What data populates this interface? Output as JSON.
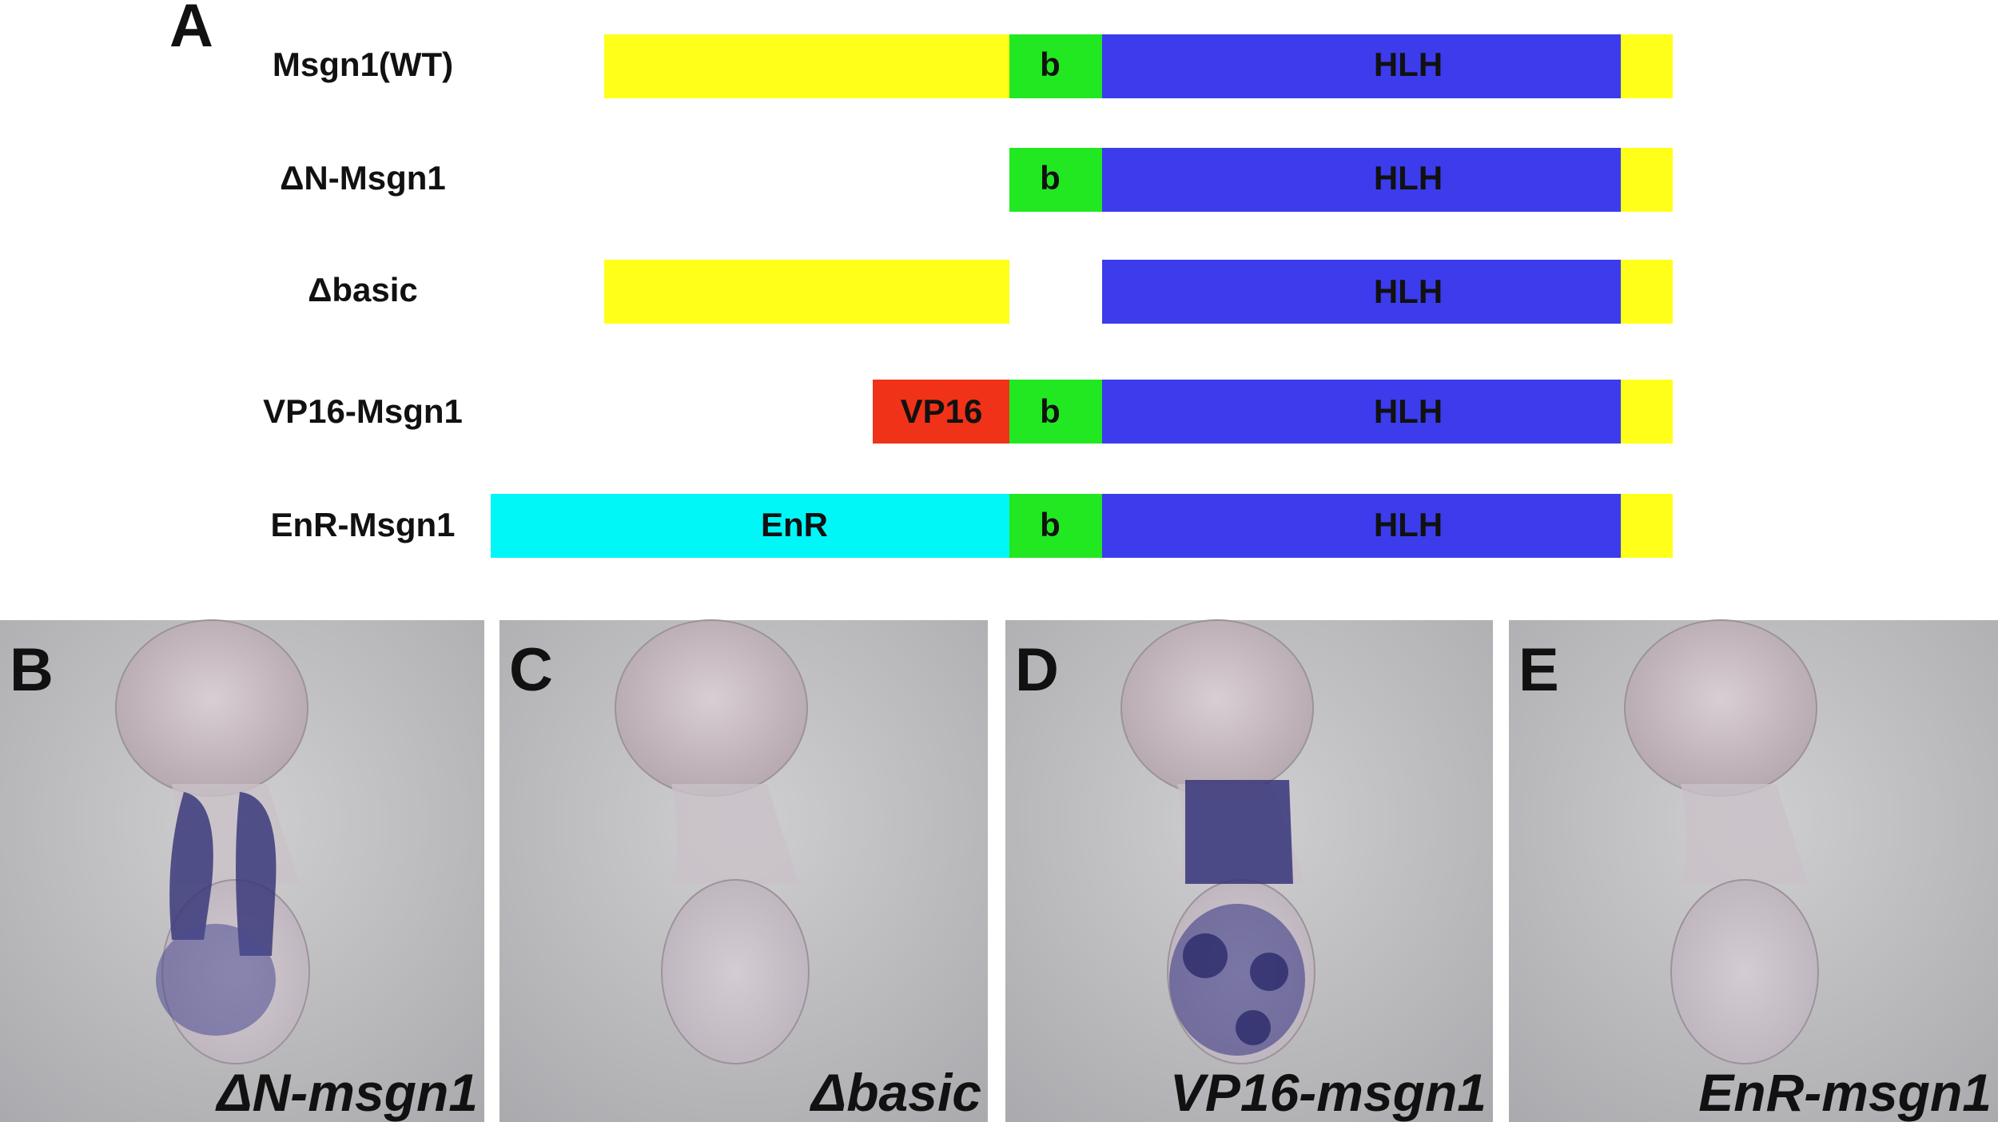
{
  "panel_a": {
    "letter": "A",
    "constructs": [
      {
        "name": "Msgn1(WT)",
        "domains": [
          "b",
          "HLH"
        ]
      },
      {
        "name": "ΔN-Msgn1",
        "domains": [
          "b",
          "HLH"
        ]
      },
      {
        "name": "Δbasic",
        "domains": [
          "HLH"
        ]
      },
      {
        "name": "VP16-Msgn1",
        "domains": [
          "VP16",
          "b",
          "HLH"
        ]
      },
      {
        "name": "EnR-Msgn1",
        "domains": [
          "EnR",
          "b",
          "HLH"
        ]
      }
    ]
  },
  "panels": [
    {
      "letter": "B",
      "caption": "ΔN-msgn1"
    },
    {
      "letter": "C",
      "caption": "Δbasic"
    },
    {
      "letter": "D",
      "caption": "VP16-msgn1"
    },
    {
      "letter": "E",
      "caption": "EnR-msgn1"
    }
  ]
}
